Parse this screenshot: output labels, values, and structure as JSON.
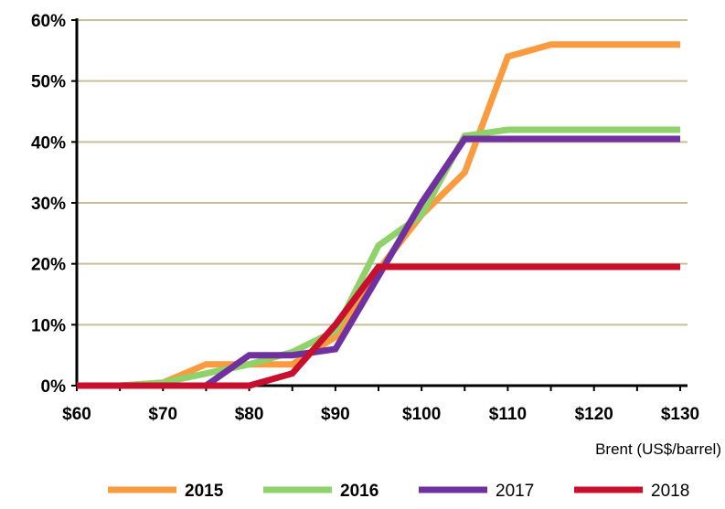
{
  "chart_data": {
    "type": "line",
    "title": "",
    "xlabel": "Brent (US$/barrel)",
    "ylabel": "",
    "x": [
      60,
      65,
      70,
      75,
      80,
      85,
      90,
      95,
      100,
      105,
      110,
      115,
      120,
      125,
      130
    ],
    "xlim": [
      60,
      130
    ],
    "ylim": [
      0,
      60
    ],
    "x_ticks": [
      60,
      70,
      80,
      90,
      100,
      110,
      120,
      130
    ],
    "x_tick_labels": [
      "$60",
      "$70",
      "$80",
      "$90",
      "$100",
      "$110",
      "$120",
      "$130"
    ],
    "y_ticks": [
      0,
      10,
      20,
      30,
      40,
      50,
      60
    ],
    "y_tick_labels": [
      "0%",
      "10%",
      "20%",
      "30%",
      "40%",
      "50%",
      "60%"
    ],
    "grid": true,
    "legend_position": "bottom",
    "series": [
      {
        "name": "2015",
        "color": "#F99B3E",
        "bold": true,
        "values": [
          0,
          0,
          0.5,
          3.5,
          3.5,
          3.5,
          8,
          19,
          28,
          35,
          54,
          56,
          56,
          56,
          56
        ]
      },
      {
        "name": "2016",
        "color": "#8FD16A",
        "bold": true,
        "values": [
          0,
          0,
          0.5,
          2,
          3.5,
          5.5,
          9,
          23,
          28,
          41,
          42,
          42,
          42,
          42,
          42
        ]
      },
      {
        "name": "2017",
        "color": "#7030A0",
        "bold": false,
        "values": [
          0,
          0,
          0,
          0,
          5,
          5,
          6,
          18,
          30,
          40.5,
          40.5,
          40.5,
          40.5,
          40.5,
          40.5
        ]
      },
      {
        "name": "2018",
        "color": "#C8102E",
        "bold": false,
        "values": [
          0,
          0,
          0,
          0,
          0,
          2,
          10,
          19.5,
          19.5,
          19.5,
          19.5,
          19.5,
          19.5,
          19.5,
          19.5
        ]
      }
    ]
  }
}
